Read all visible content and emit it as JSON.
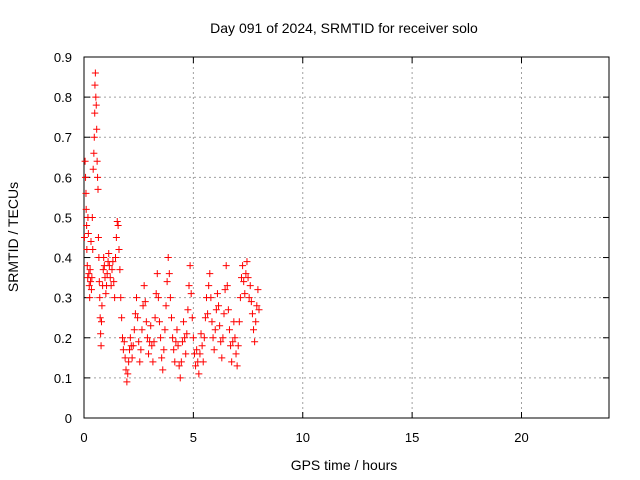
{
  "chart_data": {
    "type": "scatter",
    "title": "Day 091 of 2024, SRMTID for receiver solo",
    "xlabel": "GPS time / hours",
    "ylabel": "SRMTID / TECUs",
    "xlim": [
      0,
      24
    ],
    "ylim": [
      0,
      0.9
    ],
    "xticks": [
      0,
      5,
      10,
      15,
      20
    ],
    "yticks": [
      0,
      0.1,
      0.2,
      0.3,
      0.4,
      0.5,
      0.6,
      0.7,
      0.8,
      0.9
    ],
    "grid": true,
    "marker": "+",
    "color": "#ff0000",
    "series": [
      {
        "name": "SRMTID",
        "points": [
          [
            0.02,
            0.45
          ],
          [
            0.05,
            0.64
          ],
          [
            0.07,
            0.6
          ],
          [
            0.09,
            0.56
          ],
          [
            0.1,
            0.52
          ],
          [
            0.12,
            0.48
          ],
          [
            0.13,
            0.42
          ],
          [
            0.15,
            0.38
          ],
          [
            0.17,
            0.35
          ],
          [
            0.18,
            0.5
          ],
          [
            0.2,
            0.46
          ],
          [
            0.22,
            0.36
          ],
          [
            0.24,
            0.33
          ],
          [
            0.26,
            0.3
          ],
          [
            0.28,
            0.37
          ],
          [
            0.3,
            0.34
          ],
          [
            0.32,
            0.44
          ],
          [
            0.34,
            0.32
          ],
          [
            0.36,
            0.35
          ],
          [
            0.38,
            0.5
          ],
          [
            0.4,
            0.42
          ],
          [
            0.42,
            0.62
          ],
          [
            0.45,
            0.66
          ],
          [
            0.47,
            0.7
          ],
          [
            0.49,
            0.76
          ],
          [
            0.5,
            0.83
          ],
          [
            0.52,
            0.86
          ],
          [
            0.54,
            0.8
          ],
          [
            0.56,
            0.78
          ],
          [
            0.58,
            0.72
          ],
          [
            0.6,
            0.64
          ],
          [
            0.62,
            0.6
          ],
          [
            0.64,
            0.57
          ],
          [
            0.66,
            0.45
          ],
          [
            0.68,
            0.4
          ],
          [
            0.7,
            0.34
          ],
          [
            0.72,
            0.3
          ],
          [
            0.74,
            0.25
          ],
          [
            0.76,
            0.21
          ],
          [
            0.78,
            0.18
          ],
          [
            0.8,
            0.24
          ],
          [
            0.82,
            0.28
          ],
          [
            0.85,
            0.33
          ],
          [
            0.88,
            0.37
          ],
          [
            0.9,
            0.4
          ],
          [
            0.93,
            0.38
          ],
          [
            0.96,
            0.35
          ],
          [
            1.0,
            0.31
          ],
          [
            1.03,
            0.33
          ],
          [
            1.06,
            0.36
          ],
          [
            1.1,
            0.39
          ],
          [
            1.13,
            0.41
          ],
          [
            1.16,
            0.38
          ],
          [
            1.2,
            0.35
          ],
          [
            1.24,
            0.33
          ],
          [
            1.28,
            0.37
          ],
          [
            1.32,
            0.39
          ],
          [
            1.36,
            0.34
          ],
          [
            1.4,
            0.3
          ],
          [
            1.44,
            0.4
          ],
          [
            1.48,
            0.45
          ],
          [
            1.52,
            0.49
          ],
          [
            1.56,
            0.48
          ],
          [
            1.6,
            0.42
          ],
          [
            1.64,
            0.37
          ],
          [
            1.68,
            0.3
          ],
          [
            1.72,
            0.25
          ],
          [
            1.76,
            0.2
          ],
          [
            1.8,
            0.17
          ],
          [
            1.84,
            0.19
          ],
          [
            1.88,
            0.15
          ],
          [
            1.92,
            0.12
          ],
          [
            1.96,
            0.09
          ],
          [
            2.0,
            0.11
          ],
          [
            2.04,
            0.14
          ],
          [
            2.08,
            0.17
          ],
          [
            2.12,
            0.2
          ],
          [
            2.16,
            0.18
          ],
          [
            2.2,
            0.15
          ],
          [
            2.25,
            0.18
          ],
          [
            2.3,
            0.22
          ],
          [
            2.35,
            0.26
          ],
          [
            2.4,
            0.3
          ],
          [
            2.45,
            0.25
          ],
          [
            2.5,
            0.19
          ],
          [
            2.55,
            0.14
          ],
          [
            2.6,
            0.17
          ],
          [
            2.65,
            0.22
          ],
          [
            2.7,
            0.28
          ],
          [
            2.75,
            0.33
          ],
          [
            2.8,
            0.29
          ],
          [
            2.85,
            0.24
          ],
          [
            2.9,
            0.2
          ],
          [
            2.95,
            0.16
          ],
          [
            3.0,
            0.19
          ],
          [
            3.05,
            0.23
          ],
          [
            3.1,
            0.18
          ],
          [
            3.15,
            0.14
          ],
          [
            3.2,
            0.19
          ],
          [
            3.25,
            0.25
          ],
          [
            3.3,
            0.31
          ],
          [
            3.35,
            0.36
          ],
          [
            3.4,
            0.3
          ],
          [
            3.45,
            0.24
          ],
          [
            3.5,
            0.2
          ],
          [
            3.55,
            0.15
          ],
          [
            3.6,
            0.12
          ],
          [
            3.65,
            0.17
          ],
          [
            3.7,
            0.22
          ],
          [
            3.75,
            0.28
          ],
          [
            3.8,
            0.34
          ],
          [
            3.85,
            0.4
          ],
          [
            3.9,
            0.36
          ],
          [
            3.95,
            0.3
          ],
          [
            4.0,
            0.25
          ],
          [
            4.05,
            0.2
          ],
          [
            4.1,
            0.17
          ],
          [
            4.15,
            0.14
          ],
          [
            4.2,
            0.19
          ],
          [
            4.25,
            0.22
          ],
          [
            4.3,
            0.18
          ],
          [
            4.35,
            0.13
          ],
          [
            4.4,
            0.1
          ],
          [
            4.45,
            0.14
          ],
          [
            4.5,
            0.19
          ],
          [
            4.55,
            0.24
          ],
          [
            4.6,
            0.2
          ],
          [
            4.65,
            0.16
          ],
          [
            4.7,
            0.21
          ],
          [
            4.75,
            0.27
          ],
          [
            4.8,
            0.33
          ],
          [
            4.85,
            0.38
          ],
          [
            4.9,
            0.31
          ],
          [
            4.95,
            0.25
          ],
          [
            5.0,
            0.2
          ],
          [
            5.05,
            0.16
          ],
          [
            5.1,
            0.13
          ],
          [
            5.15,
            0.17
          ],
          [
            5.2,
            0.14
          ],
          [
            5.25,
            0.11
          ],
          [
            5.3,
            0.16
          ],
          [
            5.35,
            0.21
          ],
          [
            5.4,
            0.18
          ],
          [
            5.45,
            0.14
          ],
          [
            5.5,
            0.2
          ],
          [
            5.55,
            0.25
          ],
          [
            5.6,
            0.3
          ],
          [
            5.65,
            0.26
          ],
          [
            5.7,
            0.33
          ],
          [
            5.75,
            0.36
          ],
          [
            5.8,
            0.3
          ],
          [
            5.85,
            0.24
          ],
          [
            5.9,
            0.2
          ],
          [
            5.95,
            0.17
          ],
          [
            6.0,
            0.22
          ],
          [
            6.05,
            0.27
          ],
          [
            6.1,
            0.31
          ],
          [
            6.15,
            0.28
          ],
          [
            6.2,
            0.23
          ],
          [
            6.25,
            0.19
          ],
          [
            6.3,
            0.15
          ],
          [
            6.35,
            0.2
          ],
          [
            6.4,
            0.26
          ],
          [
            6.45,
            0.32
          ],
          [
            6.5,
            0.38
          ],
          [
            6.55,
            0.33
          ],
          [
            6.6,
            0.27
          ],
          [
            6.65,
            0.22
          ],
          [
            6.7,
            0.18
          ],
          [
            6.75,
            0.14
          ],
          [
            6.8,
            0.19
          ],
          [
            6.85,
            0.24
          ],
          [
            6.9,
            0.2
          ],
          [
            6.95,
            0.16
          ],
          [
            7.0,
            0.13
          ],
          [
            7.05,
            0.18
          ],
          [
            7.1,
            0.24
          ],
          [
            7.15,
            0.3
          ],
          [
            7.2,
            0.35
          ],
          [
            7.25,
            0.38
          ],
          [
            7.3,
            0.34
          ],
          [
            7.35,
            0.31
          ],
          [
            7.4,
            0.36
          ],
          [
            7.45,
            0.39
          ],
          [
            7.5,
            0.35
          ],
          [
            7.55,
            0.3
          ],
          [
            7.6,
            0.33
          ],
          [
            7.65,
            0.29
          ],
          [
            7.7,
            0.26
          ],
          [
            7.75,
            0.22
          ],
          [
            7.8,
            0.19
          ],
          [
            7.85,
            0.24
          ],
          [
            7.9,
            0.28
          ],
          [
            7.95,
            0.32
          ],
          [
            8.0,
            0.27
          ]
        ]
      }
    ]
  }
}
